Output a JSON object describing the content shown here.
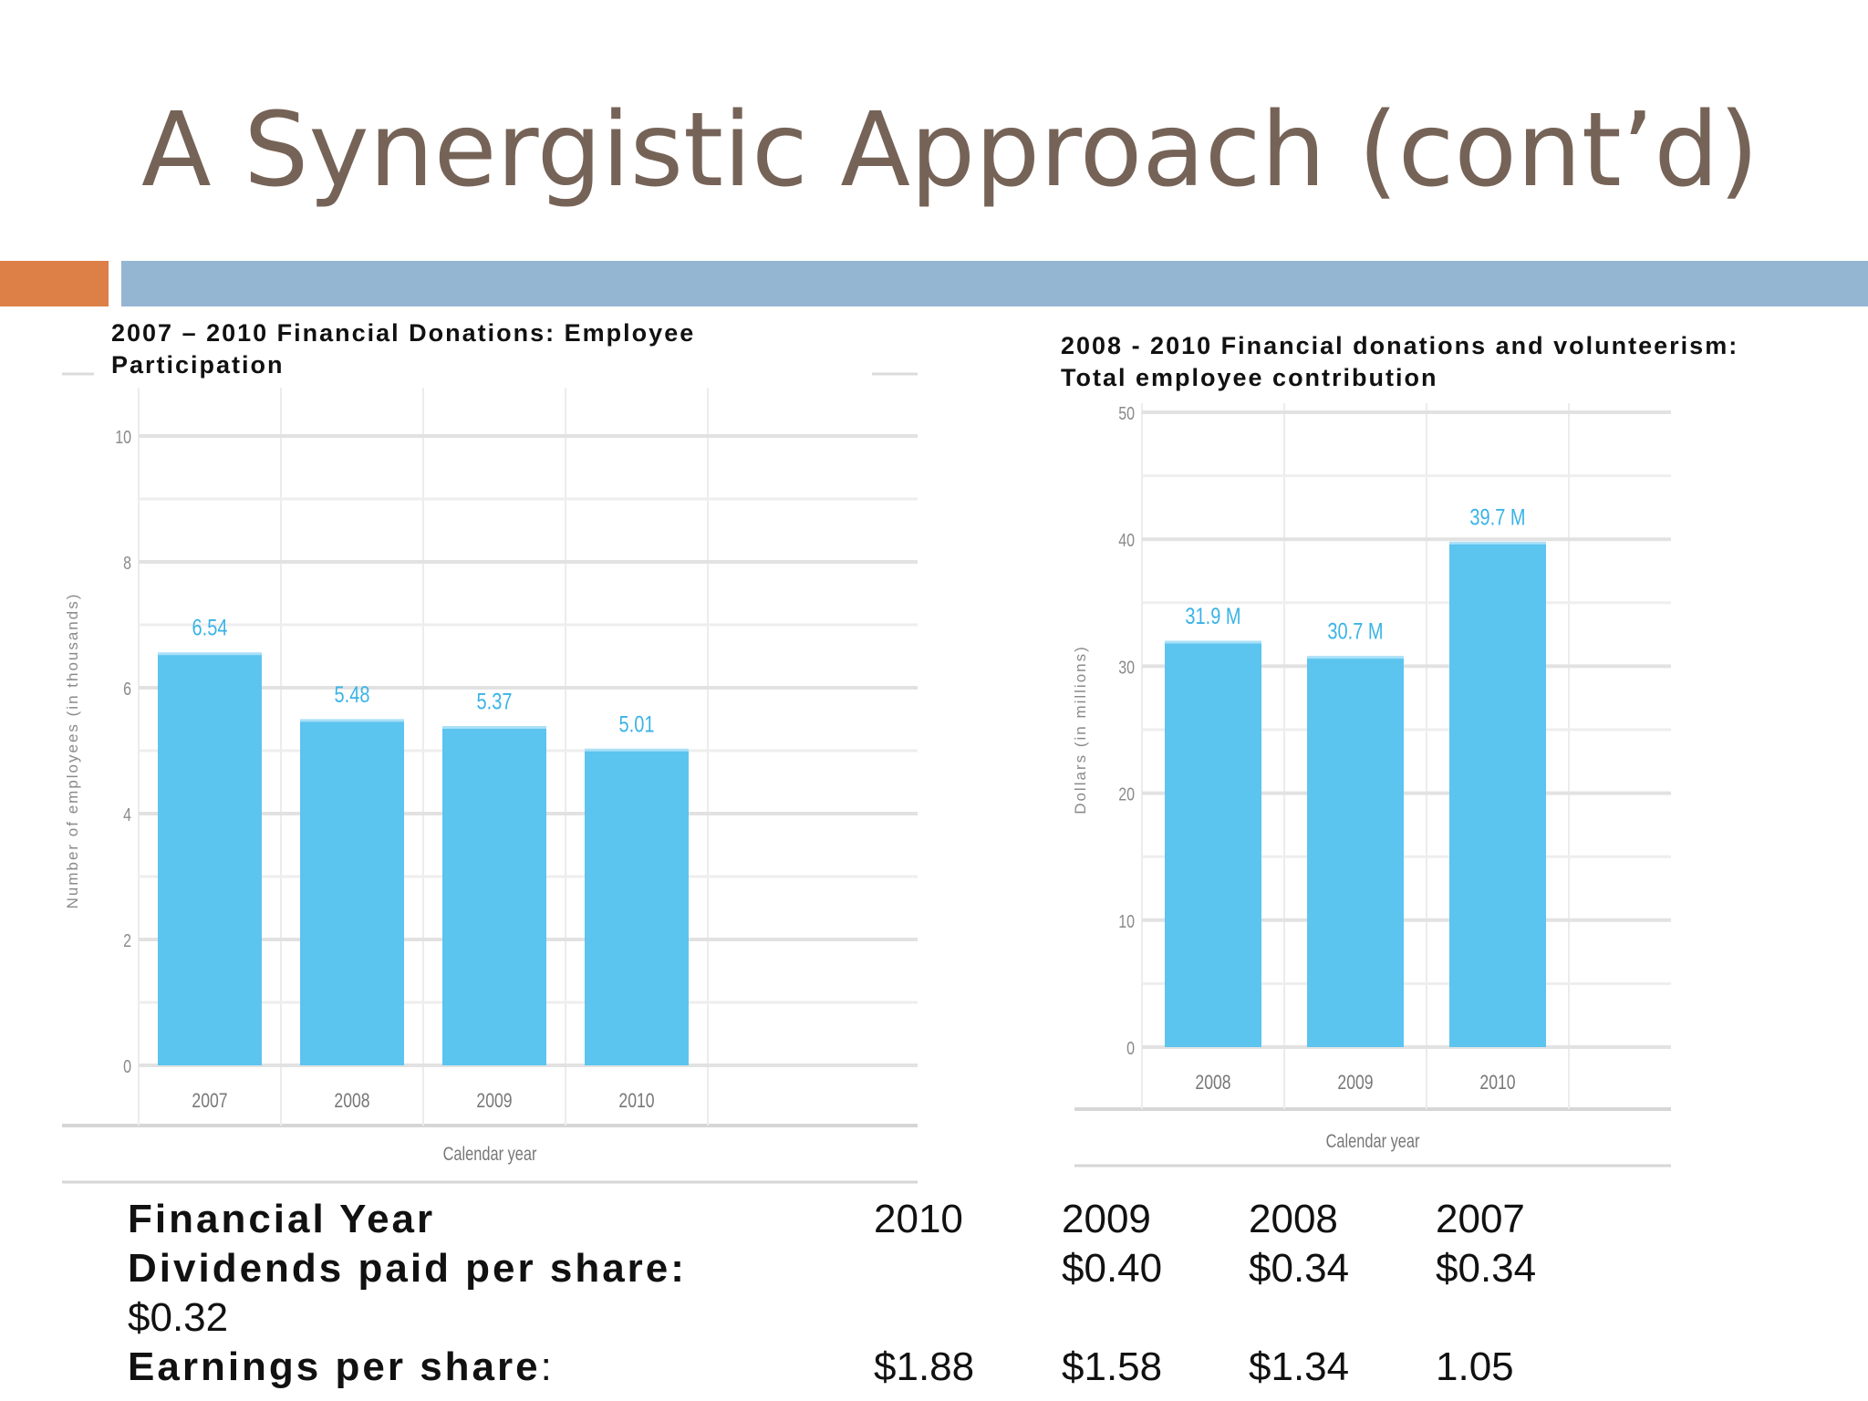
{
  "slide": {
    "title": "A Synergistic Approach (cont’d)"
  },
  "colors": {
    "title": "#766357",
    "accent_orange": "#dd8047",
    "accent_blue": "#94b6d2",
    "bar": "#5bc4ef",
    "bar_label": "#3ab3e6"
  },
  "chart_data": [
    {
      "type": "bar",
      "title_line1": "2007 – 2010 Financial Donations: Employee",
      "title_line2": "Participation",
      "categories": [
        "2007",
        "2008",
        "2009",
        "2010"
      ],
      "values": [
        6.54,
        5.48,
        5.37,
        5.01
      ],
      "data_labels": [
        "6.54",
        "5.48",
        "5.37",
        "5.01"
      ],
      "xlabel": "Calendar year",
      "ylabel": "Number of employees (in thousands)",
      "ylim": [
        0,
        10
      ],
      "yticks": [
        "0",
        "2",
        "4",
        "6",
        "8",
        "10"
      ],
      "grid": true
    },
    {
      "type": "bar",
      "title_line1": "2008 - 2010 Financial donations and volunteerism:",
      "title_line2": "Total employee contribution",
      "categories": [
        "2008",
        "2009",
        "2010"
      ],
      "values": [
        31.9,
        30.7,
        39.7
      ],
      "data_labels": [
        "31.9 M",
        "30.7 M",
        "39.7 M"
      ],
      "xlabel": "Calendar year",
      "ylabel": "Dollars (in millions)",
      "ylim": [
        0,
        50
      ],
      "yticks": [
        "0",
        "10",
        "20",
        "30",
        "40",
        "50"
      ],
      "grid": true
    }
  ],
  "table": {
    "header": {
      "label": "Financial Year",
      "c1": "2010",
      "c2": "2009",
      "c3": "2008",
      "c4": "2007"
    },
    "dividends": {
      "label": "Dividends paid per share:",
      "c2": "$0.40",
      "c3": "$0.34",
      "c4": "$0.34",
      "wrap": "$0.32"
    },
    "eps": {
      "label": "Earnings per share",
      "colon": ":",
      "c1": "$1.88",
      "c2": "$1.58",
      "c3": "$1.34",
      "c4": "1.05"
    }
  }
}
